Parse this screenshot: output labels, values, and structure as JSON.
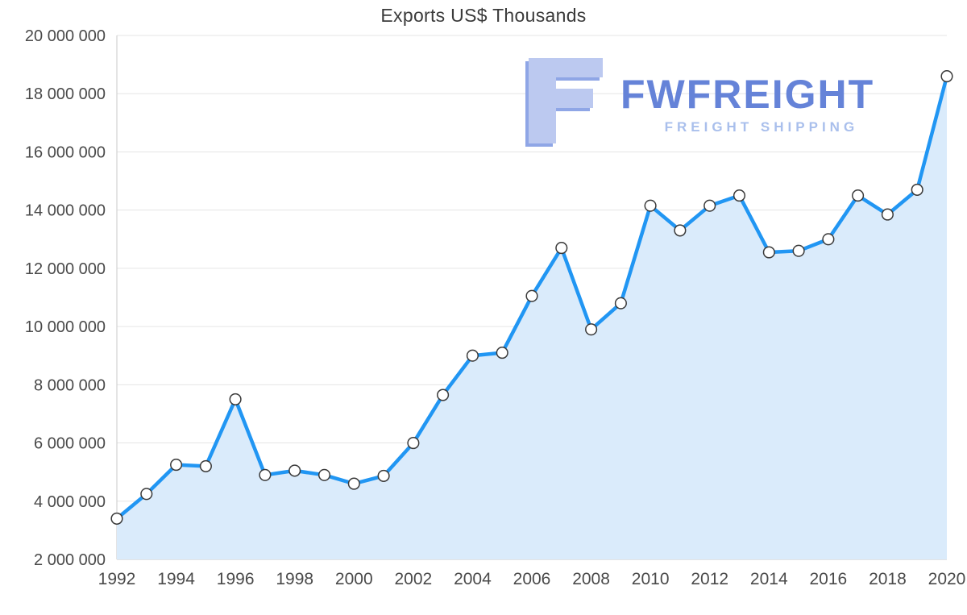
{
  "chart_data": {
    "type": "area",
    "title": "Exports US$ Thousands",
    "xlabel": "",
    "ylabel": "",
    "x": [
      1992,
      1993,
      1994,
      1995,
      1996,
      1997,
      1998,
      1999,
      2000,
      2001,
      2002,
      2003,
      2004,
      2005,
      2006,
      2007,
      2008,
      2009,
      2010,
      2011,
      2012,
      2013,
      2014,
      2015,
      2016,
      2017,
      2018,
      2019,
      2020
    ],
    "series": [
      {
        "name": "Exports US$ Thousands",
        "values": [
          3400000,
          4250000,
          5250000,
          5200000,
          7500000,
          4900000,
          5050000,
          4900000,
          4600000,
          4870000,
          6000000,
          7650000,
          9000000,
          9100000,
          11050000,
          12700000,
          9900000,
          10800000,
          14150000,
          13300000,
          14150000,
          14500000,
          12550000,
          12600000,
          13000000,
          14500000,
          13850000,
          14700000,
          18600000
        ]
      }
    ],
    "ylim": [
      2000000,
      20000000
    ],
    "ytick_step": 2000000,
    "xtick_step": 2,
    "grid": "horizontal",
    "legend": "none",
    "colors": {
      "line": "#2196f3",
      "area": "#daebfb",
      "marker_fill": "#ffffff",
      "marker_stroke": "#3a3a3a",
      "grid": "#e5e5e5",
      "axis": "#c8c8c8",
      "label": "#4a4a4a",
      "title": "#3b3b3b"
    }
  },
  "watermark": {
    "brand": "FWFREIGHT",
    "tagline": "FREIGHT SHIPPING",
    "logo_icon": "fwfreight-f-logo",
    "colors": {
      "logo_fill": "#bcc9f0",
      "logo_outline": "#8fa6e6",
      "brand_text": "#6583d8",
      "tagline_text": "#a9bfec"
    }
  }
}
